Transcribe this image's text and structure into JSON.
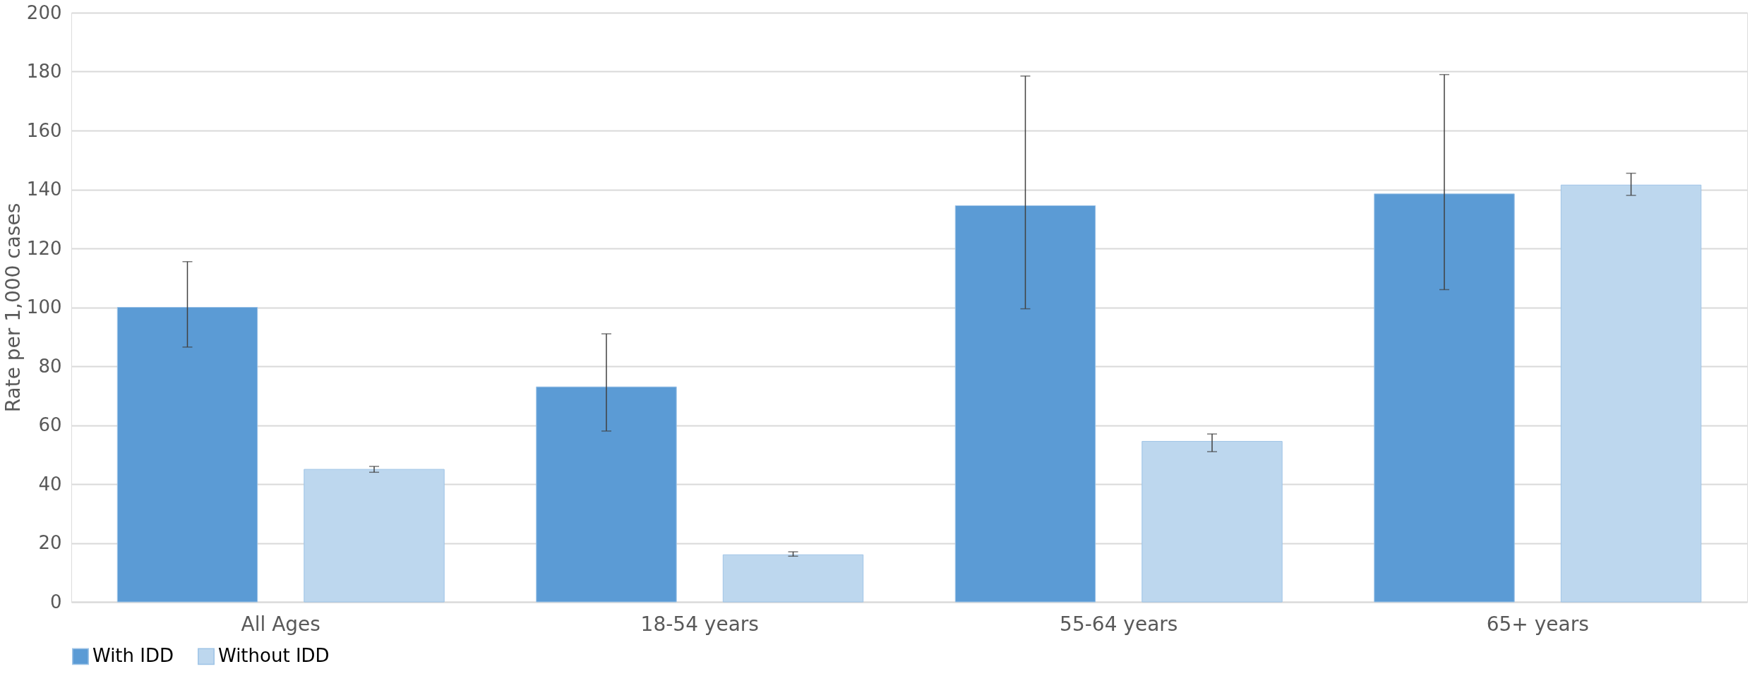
{
  "chart_data": {
    "type": "bar",
    "ylabel": "Rate per 1,000 cases",
    "categories": [
      "All Ages",
      "18-54 years",
      "55-64 years",
      "65+ years"
    ],
    "series": [
      {
        "name": "With IDD",
        "color": "#5b9bd5",
        "values": [
          100,
          73,
          134.5,
          138.5
        ],
        "errors": [
          [
            86.5,
            115.5
          ],
          [
            58,
            91
          ],
          [
            99.5,
            178.5
          ],
          [
            106,
            179
          ]
        ]
      },
      {
        "name": "Without IDD",
        "color": "#bdd7ee",
        "values": [
          45,
          16,
          54.5,
          141.5
        ],
        "errors": [
          [
            44,
            46
          ],
          [
            15.5,
            17
          ],
          [
            51,
            57
          ],
          [
            138,
            145.5
          ]
        ]
      }
    ],
    "ylim": [
      0,
      200
    ],
    "yticks": [
      0,
      20,
      40,
      60,
      80,
      100,
      120,
      140,
      160,
      180,
      200
    ],
    "grid": "y",
    "legend": "bottom"
  }
}
